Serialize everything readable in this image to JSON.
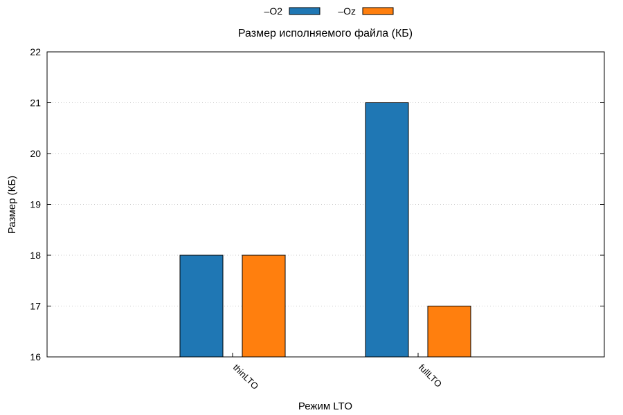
{
  "chart_data": {
    "type": "bar",
    "title": "Размер исполняемого файла (КБ)",
    "xlabel": "Режим LTO",
    "ylabel": "Размер (КБ)",
    "categories": [
      "thinLTO",
      "fullLTO"
    ],
    "series": [
      {
        "name": "–O2",
        "color": "#1f77b4",
        "values": [
          18,
          21
        ]
      },
      {
        "name": "–Oz",
        "color": "#ff7f0e",
        "values": [
          18,
          17
        ]
      }
    ],
    "ylim": [
      16,
      22
    ],
    "yticks": [
      "16",
      "17",
      "18",
      "19",
      "20",
      "21",
      "22"
    ],
    "grid": true,
    "legend_position": "top-center"
  }
}
